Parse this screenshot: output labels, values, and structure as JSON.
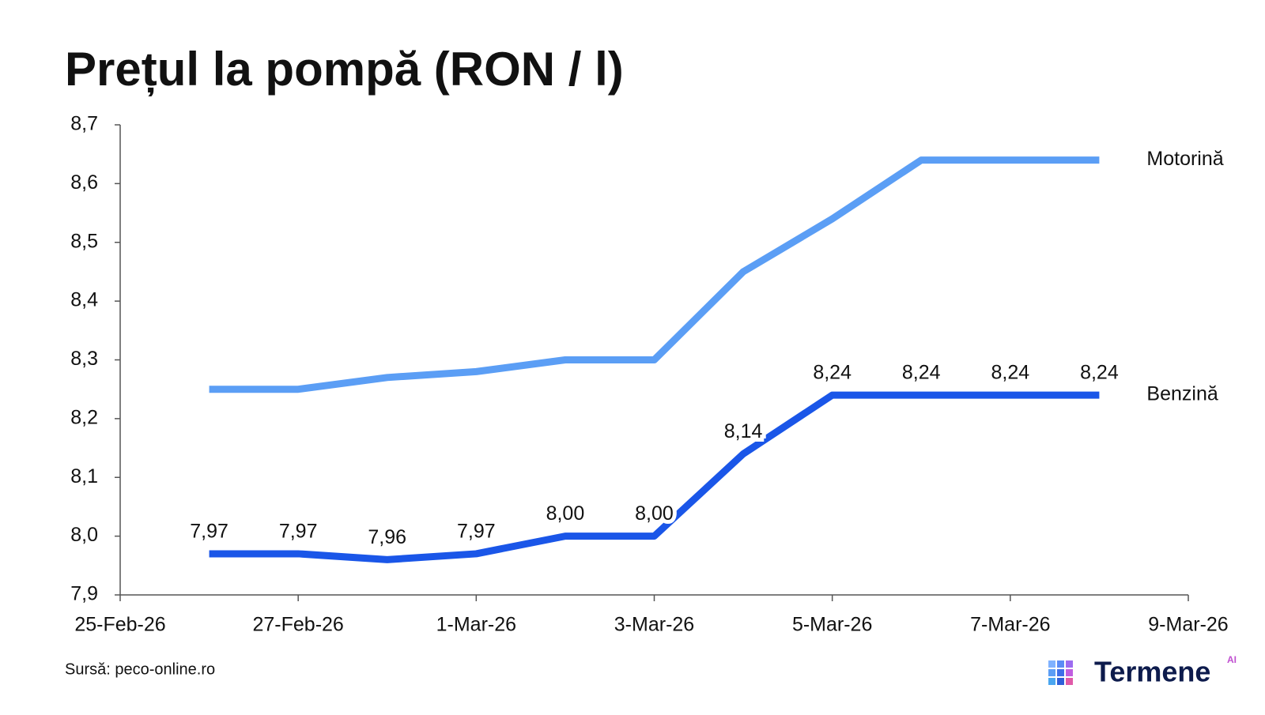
{
  "chart_data": {
    "type": "line",
    "title": "Prețul la pompă (RON / l)",
    "source": "Sursă: peco-online.ro",
    "logo_text": "Termene",
    "logo_badge": "AI",
    "x": [
      "2026-02-26",
      "2026-02-27",
      "2026-02-28",
      "2026-03-01",
      "2026-03-02",
      "2026-03-03",
      "2026-03-04",
      "2026-03-05",
      "2026-03-06",
      "2026-03-07",
      "2026-03-08"
    ],
    "series": [
      {
        "name": "Motorină",
        "color": "#5b9ef5",
        "values": [
          8.25,
          8.25,
          8.27,
          8.28,
          8.3,
          8.3,
          8.45,
          8.54,
          8.64,
          8.64,
          8.64
        ]
      },
      {
        "name": "Benzină",
        "color": "#1a56e8",
        "values": [
          7.97,
          7.97,
          7.96,
          7.97,
          8.0,
          8.0,
          8.14,
          8.24,
          8.24,
          8.24,
          8.24
        ],
        "value_labels": [
          "7,97",
          "7,97",
          "7,96",
          "7,97",
          "8,00",
          "8,00",
          "8,14",
          "8,24",
          "8,24",
          "8,24",
          "8,24"
        ]
      }
    ],
    "xlim": [
      "2026-02-25",
      "2026-03-09"
    ],
    "xticks": [
      {
        "value": "2026-02-25",
        "label": "25-Feb-26"
      },
      {
        "value": "2026-02-27",
        "label": "27-Feb-26"
      },
      {
        "value": "2026-03-01",
        "label": "1-Mar-26"
      },
      {
        "value": "2026-03-03",
        "label": "3-Mar-26"
      },
      {
        "value": "2026-03-05",
        "label": "5-Mar-26"
      },
      {
        "value": "2026-03-07",
        "label": "7-Mar-26"
      },
      {
        "value": "2026-03-09",
        "label": "9-Mar-26"
      }
    ],
    "ylim": [
      7.9,
      8.7
    ],
    "yticks": [
      {
        "value": 7.9,
        "label": "7,9"
      },
      {
        "value": 8.0,
        "label": "8,0"
      },
      {
        "value": 8.1,
        "label": "8,1"
      },
      {
        "value": 8.2,
        "label": "8,2"
      },
      {
        "value": 8.3,
        "label": "8,3"
      },
      {
        "value": 8.4,
        "label": "8,4"
      },
      {
        "value": 8.5,
        "label": "8,5"
      },
      {
        "value": 8.6,
        "label": "8,6"
      },
      {
        "value": 8.7,
        "label": "8,7"
      }
    ],
    "grid": false
  }
}
